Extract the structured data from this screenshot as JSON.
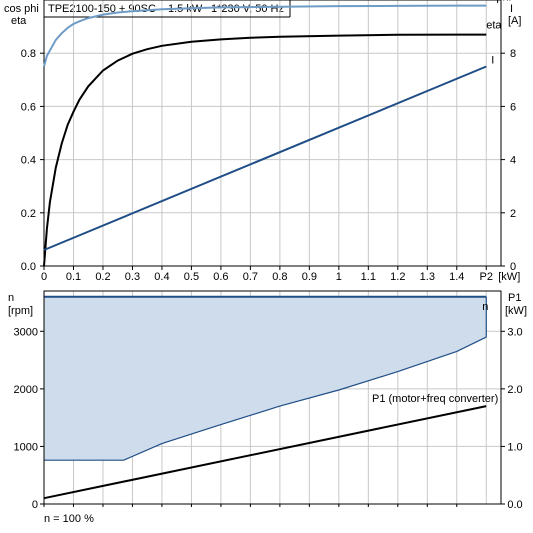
{
  "header": {
    "title": "TPE2100-150 + 90SC",
    "power": "1.5 kW",
    "supply": "1*230 V, 50 Hz"
  },
  "footer": {
    "speed_note": "n = 100 %"
  },
  "colors": {
    "cosphi": "#6e9cc7",
    "eta": "#000000",
    "current": "#1f4e86",
    "speed": "#1f4e86",
    "speed_fill": "#cfdceb",
    "p1": "#000000",
    "grid": "#c8c8c8"
  },
  "chart_data": [
    {
      "type": "line",
      "x_label": "P2 [kW]",
      "x_unit_label": "P2",
      "x_unit": "[kW]",
      "xlim": [
        0,
        1.55
      ],
      "x_ticks": [
        "0",
        "0.1",
        "0.2",
        "0.3",
        "0.4",
        "0.5",
        "0.6",
        "0.7",
        "0.8",
        "0.9",
        "1",
        "1.1",
        "1.2",
        "1.3",
        "1.4"
      ],
      "left_axis": {
        "label_line1": "cos phi",
        "label_line2": "eta",
        "ylim": [
          0,
          1.0
        ],
        "ticks": [
          "0.0",
          "0.2",
          "0.4",
          "0.6",
          "0.8"
        ]
      },
      "right_axis": {
        "label_line1": "I",
        "label_line2": "[A]",
        "ylim": [
          0,
          10
        ],
        "ticks": [
          "0",
          "2",
          "4",
          "6",
          "8"
        ]
      },
      "grid": true,
      "series": [
        {
          "name": "cos phi",
          "axis": "left",
          "x": [
            0,
            0.01,
            0.02,
            0.04,
            0.06,
            0.08,
            0.1,
            0.12,
            0.15,
            0.2,
            0.25,
            0.3,
            0.4,
            0.5,
            0.6,
            0.8,
            1.0,
            1.2,
            1.4,
            1.5
          ],
          "y": [
            0.75,
            0.79,
            0.81,
            0.85,
            0.875,
            0.895,
            0.91,
            0.92,
            0.932,
            0.945,
            0.953,
            0.958,
            0.965,
            0.969,
            0.972,
            0.975,
            0.977,
            0.978,
            0.979,
            0.979
          ]
        },
        {
          "name": "eta",
          "axis": "left",
          "x": [
            0,
            0.01,
            0.02,
            0.04,
            0.06,
            0.08,
            0.1,
            0.12,
            0.15,
            0.2,
            0.25,
            0.3,
            0.35,
            0.4,
            0.5,
            0.6,
            0.7,
            0.8,
            1.0,
            1.2,
            1.4,
            1.5
          ],
          "y": [
            0,
            0.14,
            0.24,
            0.37,
            0.46,
            0.53,
            0.58,
            0.625,
            0.675,
            0.735,
            0.772,
            0.798,
            0.815,
            0.828,
            0.843,
            0.852,
            0.858,
            0.862,
            0.866,
            0.869,
            0.87,
            0.87
          ]
        },
        {
          "name": "I",
          "axis": "right",
          "x": [
            0,
            1.5
          ],
          "y": [
            0.6,
            7.5
          ]
        }
      ]
    },
    {
      "type": "area",
      "x_unit_label": "P2",
      "xlim": [
        0,
        1.55
      ],
      "left_axis": {
        "label_line1": "n",
        "label_line2": "[rpm]",
        "ylim": [
          0,
          3700
        ],
        "ticks": [
          "0",
          "1000",
          "2000",
          "3000"
        ]
      },
      "right_axis": {
        "label_line1": "P1",
        "label_line2": "[kW]",
        "ylim": [
          0,
          3.7
        ],
        "ticks": [
          "0.0",
          "1.0",
          "2.0",
          "3.0"
        ]
      },
      "grid": true,
      "series": [
        {
          "name": "n",
          "axis": "left",
          "upper": {
            "x": [
              0,
              1.5
            ],
            "y": [
              3600,
              3600
            ]
          },
          "lower": {
            "x": [
              0,
              0.27,
              0.4,
              0.6,
              0.8,
              1.0,
              1.2,
              1.4,
              1.5
            ],
            "y": [
              760,
              760,
              1050,
              1380,
              1700,
              1980,
              2300,
              2650,
              2900
            ]
          }
        },
        {
          "name": "P1 (motor+freq converter)",
          "axis": "right",
          "x": [
            0,
            1.5
          ],
          "y": [
            0.1,
            1.7
          ]
        }
      ]
    }
  ]
}
